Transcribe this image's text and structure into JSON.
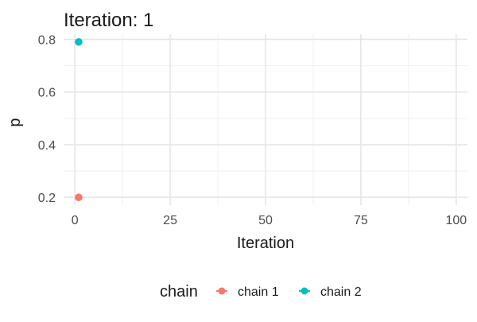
{
  "chart_data": {
    "type": "scatter",
    "title": "Iteration: 1",
    "xlabel": "Iteration",
    "ylabel": "p",
    "xlim": [
      -2.95,
      102.95
    ],
    "ylim": [
      0.1705,
      0.8195
    ],
    "x_ticks": [
      0,
      25,
      50,
      75,
      100
    ],
    "y_ticks": [
      0.2,
      0.4,
      0.6,
      0.8
    ],
    "x_tick_labels": [
      "0",
      "25",
      "50",
      "75",
      "100"
    ],
    "y_tick_labels": [
      "0.2",
      "0.4",
      "0.6",
      "0.8"
    ],
    "grid": true,
    "legend": {
      "title": "chain",
      "position": "bottom"
    },
    "series": [
      {
        "name": "chain 1",
        "color": "#F8766D",
        "points": [
          {
            "x": 1,
            "y": 0.2
          }
        ]
      },
      {
        "name": "chain 2",
        "color": "#00BFC4",
        "points": [
          {
            "x": 1,
            "y": 0.79
          }
        ]
      }
    ]
  }
}
